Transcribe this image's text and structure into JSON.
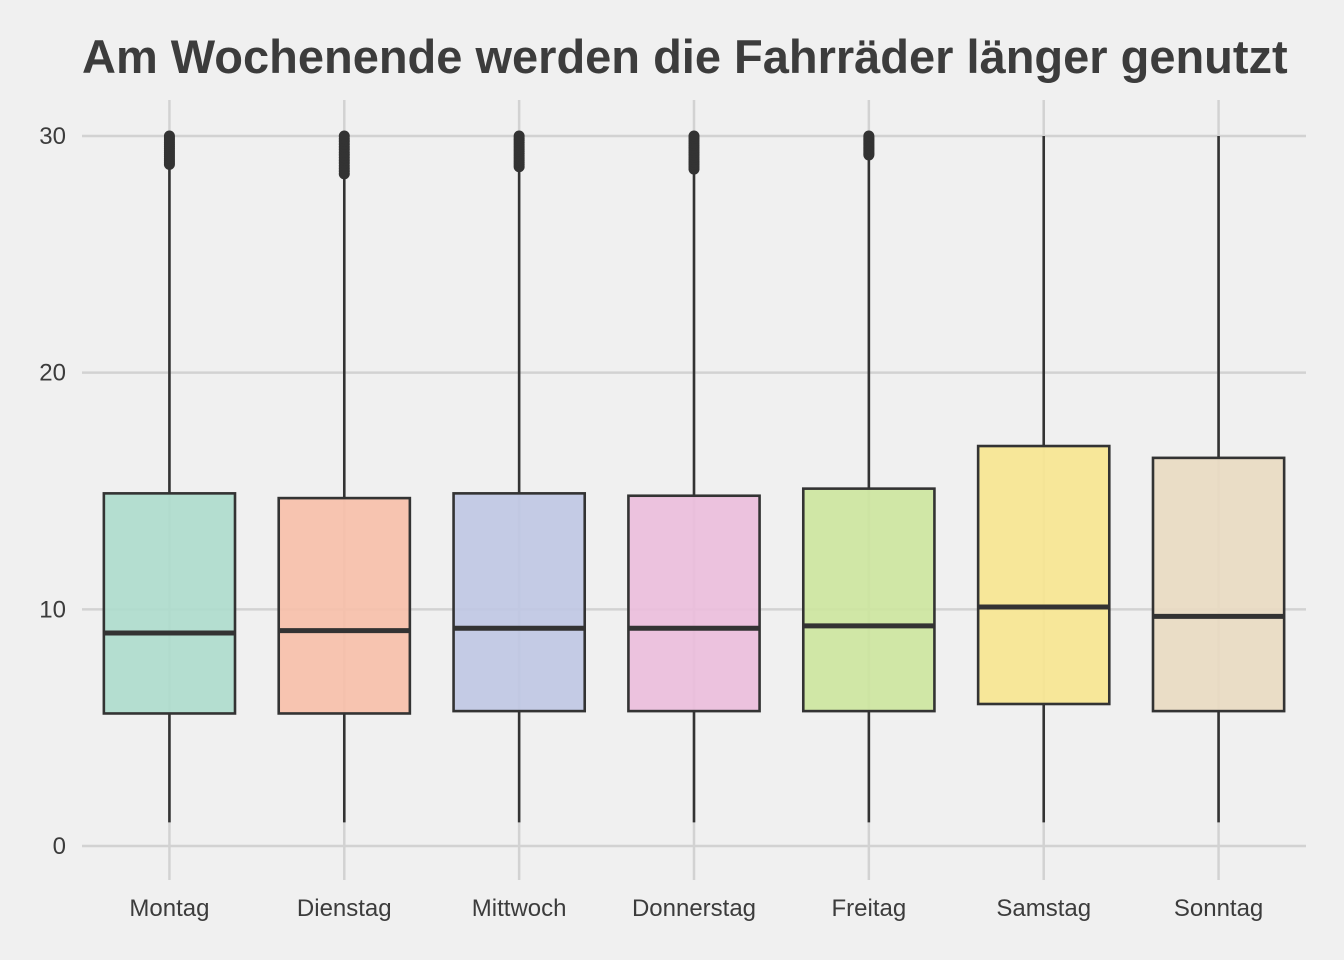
{
  "chart_data": {
    "type": "box",
    "title": "Am Wochenende werden die Fahrräder länger genutzt",
    "xlabel": "",
    "ylabel": "",
    "ylim": [
      -1.5,
      31.5
    ],
    "yticks": [
      "0",
      "10",
      "20",
      "30"
    ],
    "grid": true,
    "legend": "none",
    "categories": [
      "Montag",
      "Dienstag",
      "Mittwoch",
      "Donnerstag",
      "Freitag",
      "Samstag",
      "Sonntag"
    ],
    "boxes": [
      {
        "category": "Montag",
        "min": 1.0,
        "q1": 5.6,
        "median": 9.0,
        "q3": 14.9,
        "max": 28.8,
        "outliers_from": 28.8,
        "outliers_to": 30.0,
        "color": "#addbcc"
      },
      {
        "category": "Dienstag",
        "min": 1.0,
        "q1": 5.6,
        "median": 9.1,
        "q3": 14.7,
        "max": 28.4,
        "outliers_from": 28.4,
        "outliers_to": 30.0,
        "color": "#f7bfa8"
      },
      {
        "category": "Mittwoch",
        "min": 1.0,
        "q1": 5.7,
        "median": 9.2,
        "q3": 14.9,
        "max": 28.7,
        "outliers_from": 28.7,
        "outliers_to": 30.0,
        "color": "#bfc7e3"
      },
      {
        "category": "Donnerstag",
        "min": 1.0,
        "q1": 5.7,
        "median": 9.2,
        "q3": 14.8,
        "max": 28.6,
        "outliers_from": 28.6,
        "outliers_to": 30.0,
        "color": "#ebbcdb"
      },
      {
        "category": "Freitag",
        "min": 1.0,
        "q1": 5.7,
        "median": 9.3,
        "q3": 15.1,
        "max": 29.2,
        "outliers_from": 29.2,
        "outliers_to": 30.0,
        "color": "#cce59d"
      },
      {
        "category": "Samstag",
        "min": 1.0,
        "q1": 6.0,
        "median": 10.1,
        "q3": 16.9,
        "max": 30.0,
        "color": "#f7e68f"
      },
      {
        "category": "Sonntag",
        "min": 1.0,
        "q1": 5.7,
        "median": 9.7,
        "q3": 16.4,
        "max": 30.0,
        "color": "#e9dac1"
      }
    ]
  }
}
